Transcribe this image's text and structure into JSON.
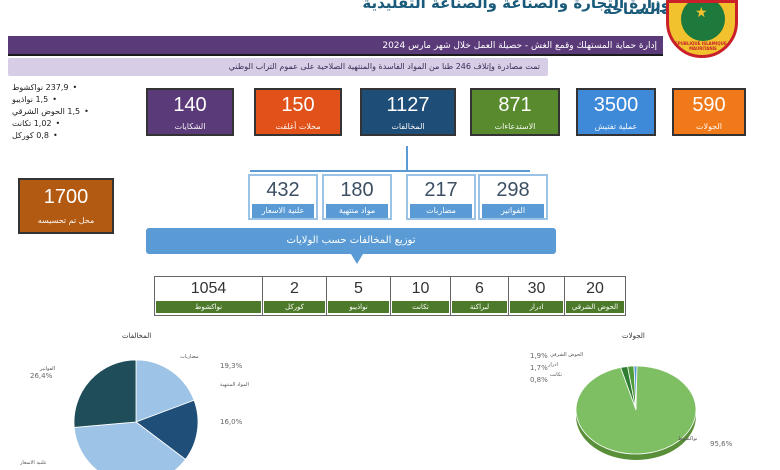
{
  "header": {
    "title": "وزارة التجارة والصناعة والصناعة التقليدية والسياحة",
    "emblem_text": "REPUBLIQUE ISLAMIQUE DE MAURITANIE"
  },
  "subheader": {
    "text": "إدارة حماية المستهلك وقمع الغش    -    حصيلة العمل خلال شهر مارس 2024"
  },
  "notice": "تمت مصادرة  وإتلاف 246 طنا من المواد الفاسدة والمنتهية الصلاحية على عموم التراب الوطني",
  "stats": [
    "237,9 نواكشوط",
    "1,5 نواذيبو",
    "1,5 الحوض الشرقي",
    "1,02 تكانت",
    "0,8 كوركل"
  ],
  "kpis": [
    {
      "value": "590",
      "label": "الجولات",
      "color": "#f07a1a"
    },
    {
      "value": "3500",
      "label": "عملية تفتيش",
      "color": "#3f8ad8"
    },
    {
      "value": "871",
      "label": "الاستدعاءات",
      "color": "#5a8a2e"
    },
    {
      "value": "1127",
      "label": "المخالفات",
      "color": "#1e4d78"
    },
    {
      "value": "150",
      "label": "محلات أغلقت",
      "color": "#e0521a"
    },
    {
      "value": "140",
      "label": "الشكايات",
      "color": "#5b3a79"
    }
  ],
  "collected": {
    "value": "1700",
    "label": "محل تم تحسيسه",
    "color": "#b25a12"
  },
  "violation_types": [
    {
      "value": "298",
      "label": "الفواتير"
    },
    {
      "value": "217",
      "label": "مضاربات"
    },
    {
      "value": "180",
      "label": "مواد منتهية"
    },
    {
      "value": "432",
      "label": "علنية الاسعار"
    }
  ],
  "banner": "توزيع المخالفات حسب الولايات",
  "regions": [
    {
      "value": "1054",
      "label": "نواكشوط"
    },
    {
      "value": "2",
      "label": "كوركل"
    },
    {
      "value": "5",
      "label": "نواذيبو"
    },
    {
      "value": "10",
      "label": "تكانت"
    },
    {
      "value": "6",
      "label": "لبراكنة"
    },
    {
      "value": "30",
      "label": "ادرار"
    },
    {
      "value": "20",
      "label": "الحوض الشرقي"
    }
  ],
  "chart_data": [
    {
      "type": "pie",
      "title": "المخالفات",
      "categories": [
        "مضاربات",
        "المواد المنتهية",
        "علنية الاسعار",
        "الفواتير"
      ],
      "values": [
        19.3,
        16.0,
        38.3,
        26.4
      ],
      "labels_pct": [
        "19,3%",
        "16,0%",
        "",
        "26,4%"
      ],
      "colors": [
        "#9dc3e6",
        "#1f4e79",
        "#9dc3e6",
        "#1f4e5a"
      ]
    },
    {
      "type": "pie",
      "title": "الجولات",
      "categories": [
        "الحوض الشرقي",
        "ادرار",
        "تكانت",
        "نواكشوط"
      ],
      "values": [
        1.9,
        1.7,
        0.8,
        95.6
      ],
      "labels_pct": [
        "1,9%",
        "1,7%",
        "0,8%",
        "95,6%"
      ],
      "colors": [
        "#2e7d32",
        "#4f9a3a",
        "#5b9bd5",
        "#7fbf63"
      ]
    }
  ]
}
